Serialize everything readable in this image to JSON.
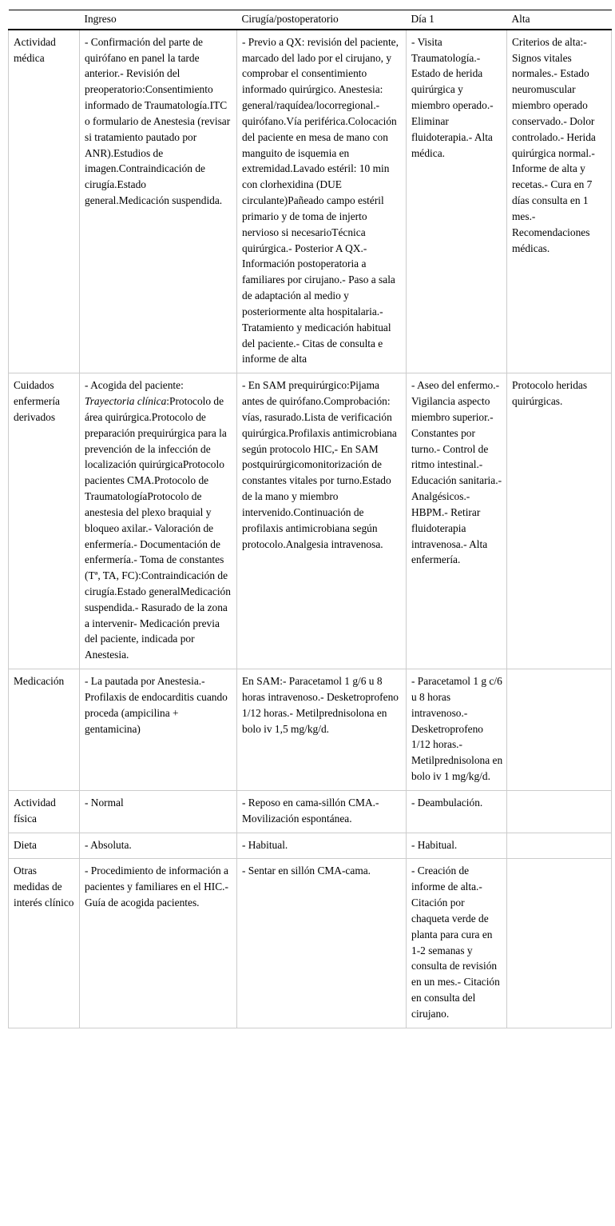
{
  "table": {
    "headers": {
      "corner": "",
      "ingreso": "Ingreso",
      "cirugia": "Cirugía/postoperatorio",
      "dia1": "Día 1",
      "alta": "Alta"
    },
    "rows": [
      {
        "label": "Actividad médica",
        "ingreso": "- Confirmación del parte de quirófano en panel la tarde anterior.- Revisión del preoperatorio:Consentimiento informado de Traumatología.ITC o formulario de Anestesia (revisar si tratamiento pautado por ANR).Estudios de imagen.Contraindicación de cirugía.Estado general.Medicación suspendida.",
        "cirugia": "- Previo a QX: revisión del paciente, marcado del lado por el cirujano, y comprobar el consentimiento informado quirúrgico. Anestesia: general/raquídea/locorregional.- quirófano.Vía periférica.Colocación del paciente en mesa de mano con manguito de isquemia en extremidad.Lavado estéril: 10 min con clorhexidina (DUE circulante)Pañeado campo estéril primario y de toma de injerto nervioso si necesarioTécnica quirúrgica.- Posterior A QX.- Información postoperatoria a familiares por cirujano.- Paso a sala de adaptación al medio y posteriormente alta hospitalaria.- Tratamiento y medicación habitual del paciente.- Citas de consulta e informe de alta",
        "dia1": "- Visita Traumatología.- Estado de herida quirúrgica y miembro operado.- Eliminar fluidoterapia.- Alta médica.",
        "alta": "Criterios de alta:- Signos vitales normales.- Estado neuromuscular miembro operado conservado.- Dolor controlado.- Herida quirúrgica normal.- Informe de alta y recetas.- Cura en 7 días consulta en 1 mes.- Recomendaciones médicas."
      },
      {
        "label": "Cuidados enfermería derivados",
        "ingreso_pre": "- Acogida del paciente: ",
        "ingreso_italic": "Trayectoria clínica",
        "ingreso_post": ":Protocolo de área quirúrgica.Protocolo de preparación prequirúrgica para la prevención de la infección de localización quirúrgicaProtocolo pacientes CMA.Protocolo de TraumatologíaProtocolo de anestesia del plexo braquial y bloqueo axilar.- Valoración de enfermería.- Documentación de enfermería.- Toma de constantes (Tª, TA, FC):Contraindicación de cirugía.Estado generalMedicación suspendida.- Rasurado de la zona a intervenir- Medicación previa del paciente, indicada por Anestesia.",
        "cirugia": "- En SAM prequirúrgico:Pijama antes de quirófano.Comprobación: vías, rasurado.Lista de verificación quirúrgica.Profilaxis antimicrobiana según protocolo HIC,- En SAM postquirúrgicomonitorización de constantes vitales por turno.Estado de la mano y miembro intervenido.Continuación de profilaxis antimicrobiana según protocolo.Analgesia intravenosa.",
        "dia1": "- Aseo del enfermo.- Vigilancia aspecto miembro superior.- Constantes por turno.- Control de ritmo intestinal.- Educación sanitaria.- Analgésicos.- HBPM.- Retirar fluidoterapia intravenosa.- Alta enfermería.",
        "alta": "Protocolo heridas quirúrgicas."
      },
      {
        "label": "Medicación",
        "ingreso": "- La pautada por Anestesia.- Profilaxis de endocarditis cuando proceda (ampicilina + gentamicina)",
        "cirugia": "En SAM:- Paracetamol 1 g/6 u 8 horas intravenoso.- Desketroprofeno 1/12 horas.- Metilprednisolona en bolo iv 1,5 mg/kg/d.",
        "dia1": "- Paracetamol 1 g c/6 u 8 horas intravenoso.- Desketroprofeno 1/12 horas.- Metilprednisolona en bolo iv 1 mg/kg/d.",
        "alta": ""
      },
      {
        "label": "Actividad física",
        "ingreso": "- Normal",
        "cirugia": "- Reposo en cama-sillón CMA.- Movilización espontánea.",
        "dia1": "- Deambulación.",
        "alta": ""
      },
      {
        "label": "Dieta",
        "ingreso": "- Absoluta.",
        "cirugia": "- Habitual.",
        "dia1": "- Habitual.",
        "alta": ""
      },
      {
        "label": "Otras medidas de interés clínico",
        "ingreso": "- Procedimiento de información a pacientes y familiares en el HIC.- Guía de acogida pacientes.",
        "cirugia": "- Sentar en sillón CMA-cama.",
        "dia1": "- Creación de informe de alta.- Citación por chaqueta verde de planta para cura en 1-2 semanas y consulta de revisión en un mes.- Citación en consulta del cirujano.",
        "alta": ""
      }
    ]
  }
}
